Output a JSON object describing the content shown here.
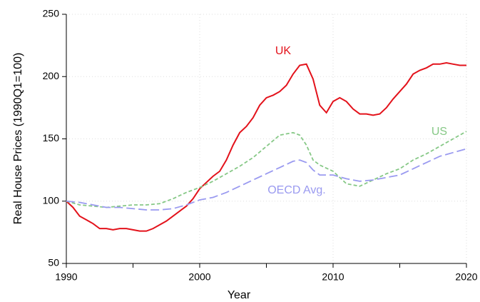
{
  "chart_data": {
    "type": "line",
    "x_label": "Year",
    "y_label": "Real House Prices (1990Q1=100)",
    "xlim": [
      1990,
      2020
    ],
    "xticks": [
      1990,
      2000,
      2010,
      2020
    ],
    "xminor_ticks": [
      1995,
      2005,
      2015
    ],
    "ylim": [
      50,
      250
    ],
    "yticks": [
      50,
      100,
      150,
      200,
      250
    ],
    "grid": true,
    "series": [
      {
        "name": "UK",
        "color": "#e3121b",
        "dash": "solid",
        "x": [
          1990,
          1990.5,
          1991,
          1991.5,
          1992,
          1992.5,
          1993,
          1993.5,
          1994,
          1994.5,
          1995,
          1995.5,
          1996,
          1996.5,
          1997,
          1997.5,
          1998,
          1998.5,
          1999,
          1999.5,
          2000,
          2000.5,
          2001,
          2001.5,
          2002,
          2002.5,
          2003,
          2003.5,
          2004,
          2004.5,
          2005,
          2005.5,
          2006,
          2006.5,
          2007,
          2007.5,
          2008,
          2008.5,
          2009,
          2009.5,
          2010,
          2010.5,
          2011,
          2011.5,
          2012,
          2012.5,
          2013,
          2013.5,
          2014,
          2014.5,
          2015,
          2015.5,
          2016,
          2016.5,
          2017,
          2017.5,
          2018,
          2018.5,
          2019,
          2019.5,
          2020
        ],
        "values": [
          100,
          95,
          88,
          85,
          82,
          78,
          78,
          77,
          78,
          78,
          77,
          76,
          76,
          78,
          81,
          84,
          88,
          92,
          96,
          102,
          110,
          115,
          120,
          124,
          133,
          145,
          155,
          160,
          167,
          177,
          183,
          185,
          188,
          193,
          202,
          209,
          210,
          198,
          177,
          171,
          180,
          183,
          180,
          174,
          170,
          170,
          169,
          170,
          175,
          182,
          188,
          194,
          202,
          205,
          207,
          210,
          210,
          211,
          210,
          209,
          209
        ]
      },
      {
        "name": "US",
        "color": "#86c886",
        "dash": "5 3",
        "x": [
          1990,
          1991,
          1992,
          1993,
          1994,
          1995,
          1996,
          1997,
          1998,
          1999,
          2000,
          2001,
          2002,
          2003,
          2004,
          2005,
          2006,
          2007,
          2007.5,
          2008,
          2008.5,
          2009,
          2010,
          2011,
          2012,
          2013,
          2014,
          2015,
          2016,
          2017,
          2018,
          2019,
          2020
        ],
        "values": [
          100,
          97,
          96,
          95,
          96,
          97,
          97,
          98,
          102,
          107,
          111,
          116,
          122,
          128,
          135,
          144,
          153,
          155,
          153,
          145,
          133,
          129,
          124,
          114,
          112,
          117,
          122,
          126,
          133,
          138,
          144,
          150,
          156
        ]
      },
      {
        "name": "OECD Avg.",
        "color": "#9a9af0",
        "dash": "12 5",
        "x": [
          1990,
          1991,
          1992,
          1993,
          1994,
          1995,
          1996,
          1997,
          1998,
          1999,
          2000,
          2001,
          2002,
          2003,
          2004,
          2005,
          2006,
          2007,
          2007.5,
          2008,
          2008.5,
          2009,
          2010,
          2011,
          2012,
          2013,
          2014,
          2015,
          2016,
          2017,
          2018,
          2019,
          2020
        ],
        "values": [
          100,
          99,
          97,
          95,
          95,
          94,
          93,
          93,
          94,
          97,
          101,
          103,
          107,
          112,
          117,
          122,
          127,
          132,
          133,
          131,
          125,
          121,
          121,
          118,
          116,
          117,
          119,
          121,
          126,
          131,
          136,
          139,
          142
        ]
      }
    ]
  }
}
